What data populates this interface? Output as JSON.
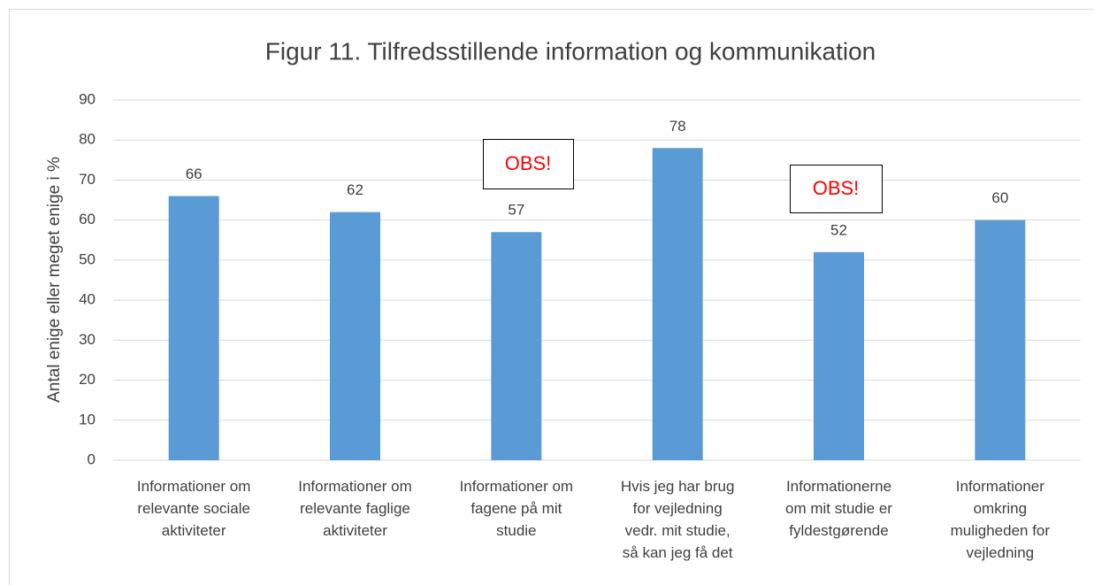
{
  "chart_data": {
    "type": "bar",
    "title": "Figur 11. Tilfredsstillende information og kommunikation",
    "y_label": "Antal enige eller meget enige i %",
    "categories": [
      "Informationer om\nrelevante sociale\naktiviteter",
      "Informationer om\nrelevante faglige\naktiviteter",
      "Informationer om\nfagene på mit\nstudie",
      "Hvis jeg har brug\nfor vejledning\nvedr. mit studie,\nså kan jeg få det",
      "Informationerne\nom mit studie er\nfyldestgørende",
      "Informationer\nomkring\nmuligheden for\nvejledning"
    ],
    "values": [
      66,
      62,
      57,
      78,
      52,
      60
    ],
    "color": "#5b9bd5",
    "ylim": [
      0,
      90
    ],
    "yticks": [
      0,
      10,
      20,
      30,
      40,
      50,
      60,
      70,
      80,
      90
    ],
    "grid": true,
    "annotations": [
      "OBS!",
      "OBS!"
    ]
  }
}
